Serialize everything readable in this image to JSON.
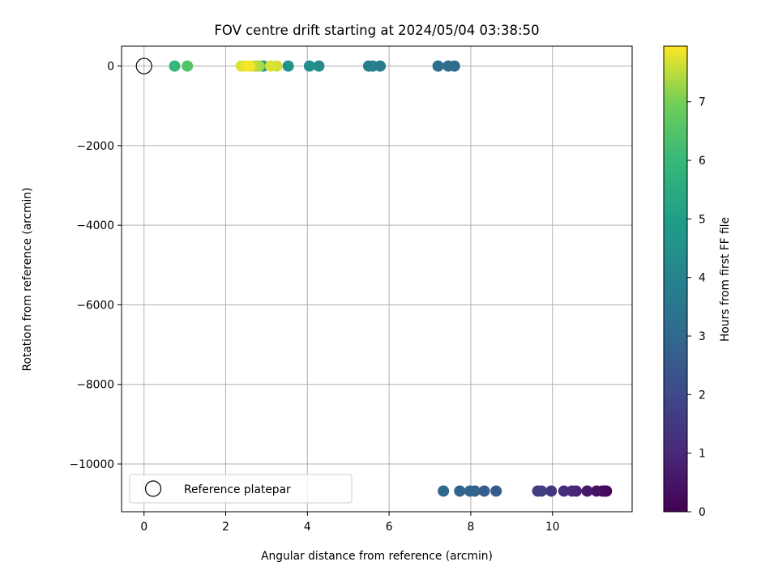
{
  "chart_data": {
    "type": "scatter",
    "title": "FOV centre drift starting at 2024/05/04 03:38:50",
    "xlabel": "Angular distance from reference (arcmin)",
    "ylabel": "Rotation from reference (arcmin)",
    "xlim": [
      -0.55,
      11.95
    ],
    "ylim": [
      -11200,
      500
    ],
    "xticks": [
      0,
      2,
      4,
      6,
      8,
      10
    ],
    "xtick_labels": [
      "0",
      "2",
      "4",
      "6",
      "8",
      "10"
    ],
    "yticks": [
      0,
      -2000,
      -4000,
      -6000,
      -8000,
      -10000
    ],
    "ytick_labels": [
      "0",
      "−2000",
      "−4000",
      "−6000",
      "−8000",
      "−10000"
    ],
    "grid": true,
    "colormap": "viridis",
    "colorbar": {
      "label": "Hours from first FF file",
      "range": [
        0,
        7.95
      ],
      "ticks": [
        0,
        1,
        2,
        3,
        4,
        5,
        6,
        7
      ],
      "tick_labels": [
        "0",
        "1",
        "2",
        "3",
        "4",
        "5",
        "6",
        "7"
      ]
    },
    "reference": {
      "x": 0,
      "y": 0,
      "label": "Reference platepar"
    },
    "legend": {
      "position": "lower-left",
      "entries": [
        "Reference platepar"
      ]
    },
    "points": [
      {
        "x": 11.32,
        "y": -10680,
        "hours": 0.1
      },
      {
        "x": 11.27,
        "y": -10680,
        "hours": 0.2
      },
      {
        "x": 11.22,
        "y": -10680,
        "hours": 0.3
      },
      {
        "x": 11.08,
        "y": -10680,
        "hours": 0.4
      },
      {
        "x": 10.85,
        "y": -10680,
        "hours": 0.6
      },
      {
        "x": 10.58,
        "y": -10680,
        "hours": 0.9
      },
      {
        "x": 10.48,
        "y": -10680,
        "hours": 1.0
      },
      {
        "x": 10.28,
        "y": -10680,
        "hours": 1.15
      },
      {
        "x": 9.97,
        "y": -10680,
        "hours": 1.4
      },
      {
        "x": 9.73,
        "y": -10680,
        "hours": 1.6
      },
      {
        "x": 9.64,
        "y": -10680,
        "hours": 1.7
      },
      {
        "x": 8.62,
        "y": -10680,
        "hours": 2.6
      },
      {
        "x": 8.33,
        "y": -10680,
        "hours": 2.7
      },
      {
        "x": 8.1,
        "y": -10680,
        "hours": 2.8
      },
      {
        "x": 7.98,
        "y": -10680,
        "hours": 2.85
      },
      {
        "x": 7.73,
        "y": -10680,
        "hours": 2.9
      },
      {
        "x": 7.33,
        "y": -10680,
        "hours": 3.0
      },
      {
        "x": 7.6,
        "y": 0,
        "hours": 3.1
      },
      {
        "x": 7.45,
        "y": 0,
        "hours": 3.15
      },
      {
        "x": 7.2,
        "y": 0,
        "hours": 3.25
      },
      {
        "x": 5.78,
        "y": 0,
        "hours": 3.75
      },
      {
        "x": 5.6,
        "y": 0,
        "hours": 3.85
      },
      {
        "x": 5.5,
        "y": 0,
        "hours": 3.9
      },
      {
        "x": 4.28,
        "y": 0,
        "hours": 4.3
      },
      {
        "x": 4.05,
        "y": 0,
        "hours": 4.45
      },
      {
        "x": 3.53,
        "y": 0,
        "hours": 4.55
      },
      {
        "x": 2.92,
        "y": 0,
        "hours": 4.65
      },
      {
        "x": 1.06,
        "y": 0,
        "hours": 6.5
      },
      {
        "x": 0.75,
        "y": 0,
        "hours": 5.9
      },
      {
        "x": 2.82,
        "y": 0,
        "hours": 7.3
      },
      {
        "x": 2.75,
        "y": 0,
        "hours": 7.45
      },
      {
        "x": 2.65,
        "y": 0,
        "hours": 7.55
      },
      {
        "x": 3.25,
        "y": 0,
        "hours": 7.65
      },
      {
        "x": 3.1,
        "y": 0,
        "hours": 7.7
      },
      {
        "x": 2.38,
        "y": 0,
        "hours": 7.75
      },
      {
        "x": 2.5,
        "y": 0,
        "hours": 7.8
      },
      {
        "x": 2.58,
        "y": 0,
        "hours": 7.9
      }
    ]
  }
}
